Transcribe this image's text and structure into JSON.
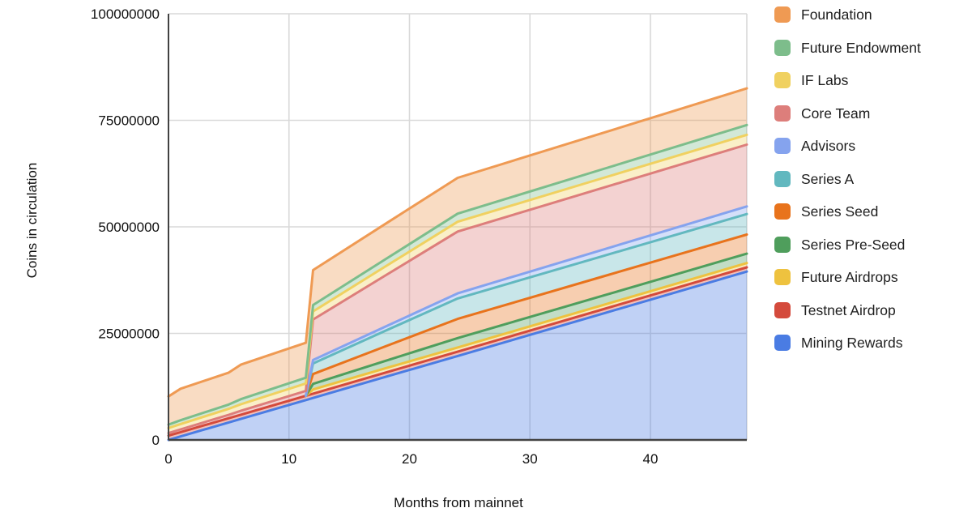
{
  "chart_data": {
    "type": "area",
    "stacked": true,
    "title": "",
    "ylabel": "Coins in circulation",
    "xlabel": "Months from mainnet",
    "grid": true,
    "legend_position": "right",
    "x_axis": {
      "range": [
        0,
        48
      ],
      "ticks": [
        0,
        10,
        20,
        30,
        40
      ]
    },
    "y_axis": {
      "range": [
        0,
        100000000
      ],
      "ticks": [
        0,
        25000000,
        50000000,
        75000000,
        100000000
      ]
    },
    "x_months": [
      0,
      1,
      5,
      6,
      11.4,
      12,
      18,
      24,
      36,
      48
    ],
    "series_bottom_to_top": [
      {
        "id": "mining-rewards",
        "name": "Mining Rewards",
        "color": "#4A7CE3",
        "values": [
          0,
          820000,
          4100000,
          4920000,
          9350000,
          9850000,
          14800000,
          19700000,
          29600000,
          39500000
        ]
      },
      {
        "id": "testnet-airdrop",
        "name": "Testnet Airdrop",
        "color": "#D44A3C",
        "values": [
          1000000,
          1000000,
          1000000,
          1000000,
          1000000,
          1000000,
          1000000,
          1000000,
          1000000,
          1000000
        ]
      },
      {
        "id": "future-airdrops",
        "name": "Future Airdrops",
        "color": "#EEC23F",
        "values": [
          null,
          null,
          null,
          null,
          0,
          1000000,
          1000000,
          1000000,
          1000000,
          1000000
        ]
      },
      {
        "id": "series-pre-seed",
        "name": "Series Pre-Seed",
        "color": "#4F9E5C",
        "values": [
          null,
          null,
          null,
          null,
          0,
          1300000,
          1750000,
          2200000,
          2200000,
          2200000
        ]
      },
      {
        "id": "series-seed",
        "name": "Series Seed",
        "color": "#E8731C",
        "values": [
          null,
          null,
          null,
          null,
          0,
          2300000,
          3400000,
          4500000,
          4500000,
          4500000
        ]
      },
      {
        "id": "series-a",
        "name": "Series A",
        "color": "#62B8BF",
        "values": [
          null,
          null,
          null,
          null,
          0,
          2500000,
          3650000,
          4800000,
          4800000,
          4800000
        ]
      },
      {
        "id": "advisors",
        "name": "Advisors",
        "color": "#85A3EE",
        "values": [
          null,
          null,
          null,
          null,
          0,
          800000,
          1000000,
          1200000,
          1500000,
          1800000
        ]
      },
      {
        "id": "core-team",
        "name": "Core Team",
        "color": "#DD7E7B",
        "values": [
          600000,
          650000,
          800000,
          900000,
          1150000,
          9500000,
          12000000,
          14500000,
          14500000,
          14500000
        ]
      },
      {
        "id": "if-labs",
        "name": "IF Labs",
        "color": "#F0D160",
        "values": [
          1200000,
          1250000,
          1400000,
          1550000,
          1750000,
          1900000,
          2100000,
          2300000,
          2300000,
          2300000
        ]
      },
      {
        "id": "future-endowment",
        "name": "Future Endowment",
        "color": "#7DBD8B",
        "values": [
          800000,
          900000,
          1000000,
          1200000,
          1350000,
          1500000,
          1700000,
          1900000,
          2100000,
          2300000
        ]
      },
      {
        "id": "foundation",
        "name": "Foundation",
        "color": "#EF9A53",
        "values": [
          6600000,
          7400000,
          7500000,
          8100000,
          8200000,
          8200000,
          8300000,
          8400000,
          8500000,
          8600000
        ]
      }
    ],
    "style": {
      "grid_color": "#D9D9D9",
      "axis_color": "#424242",
      "fill_opacity": 0.35,
      "line_width": 3
    }
  }
}
